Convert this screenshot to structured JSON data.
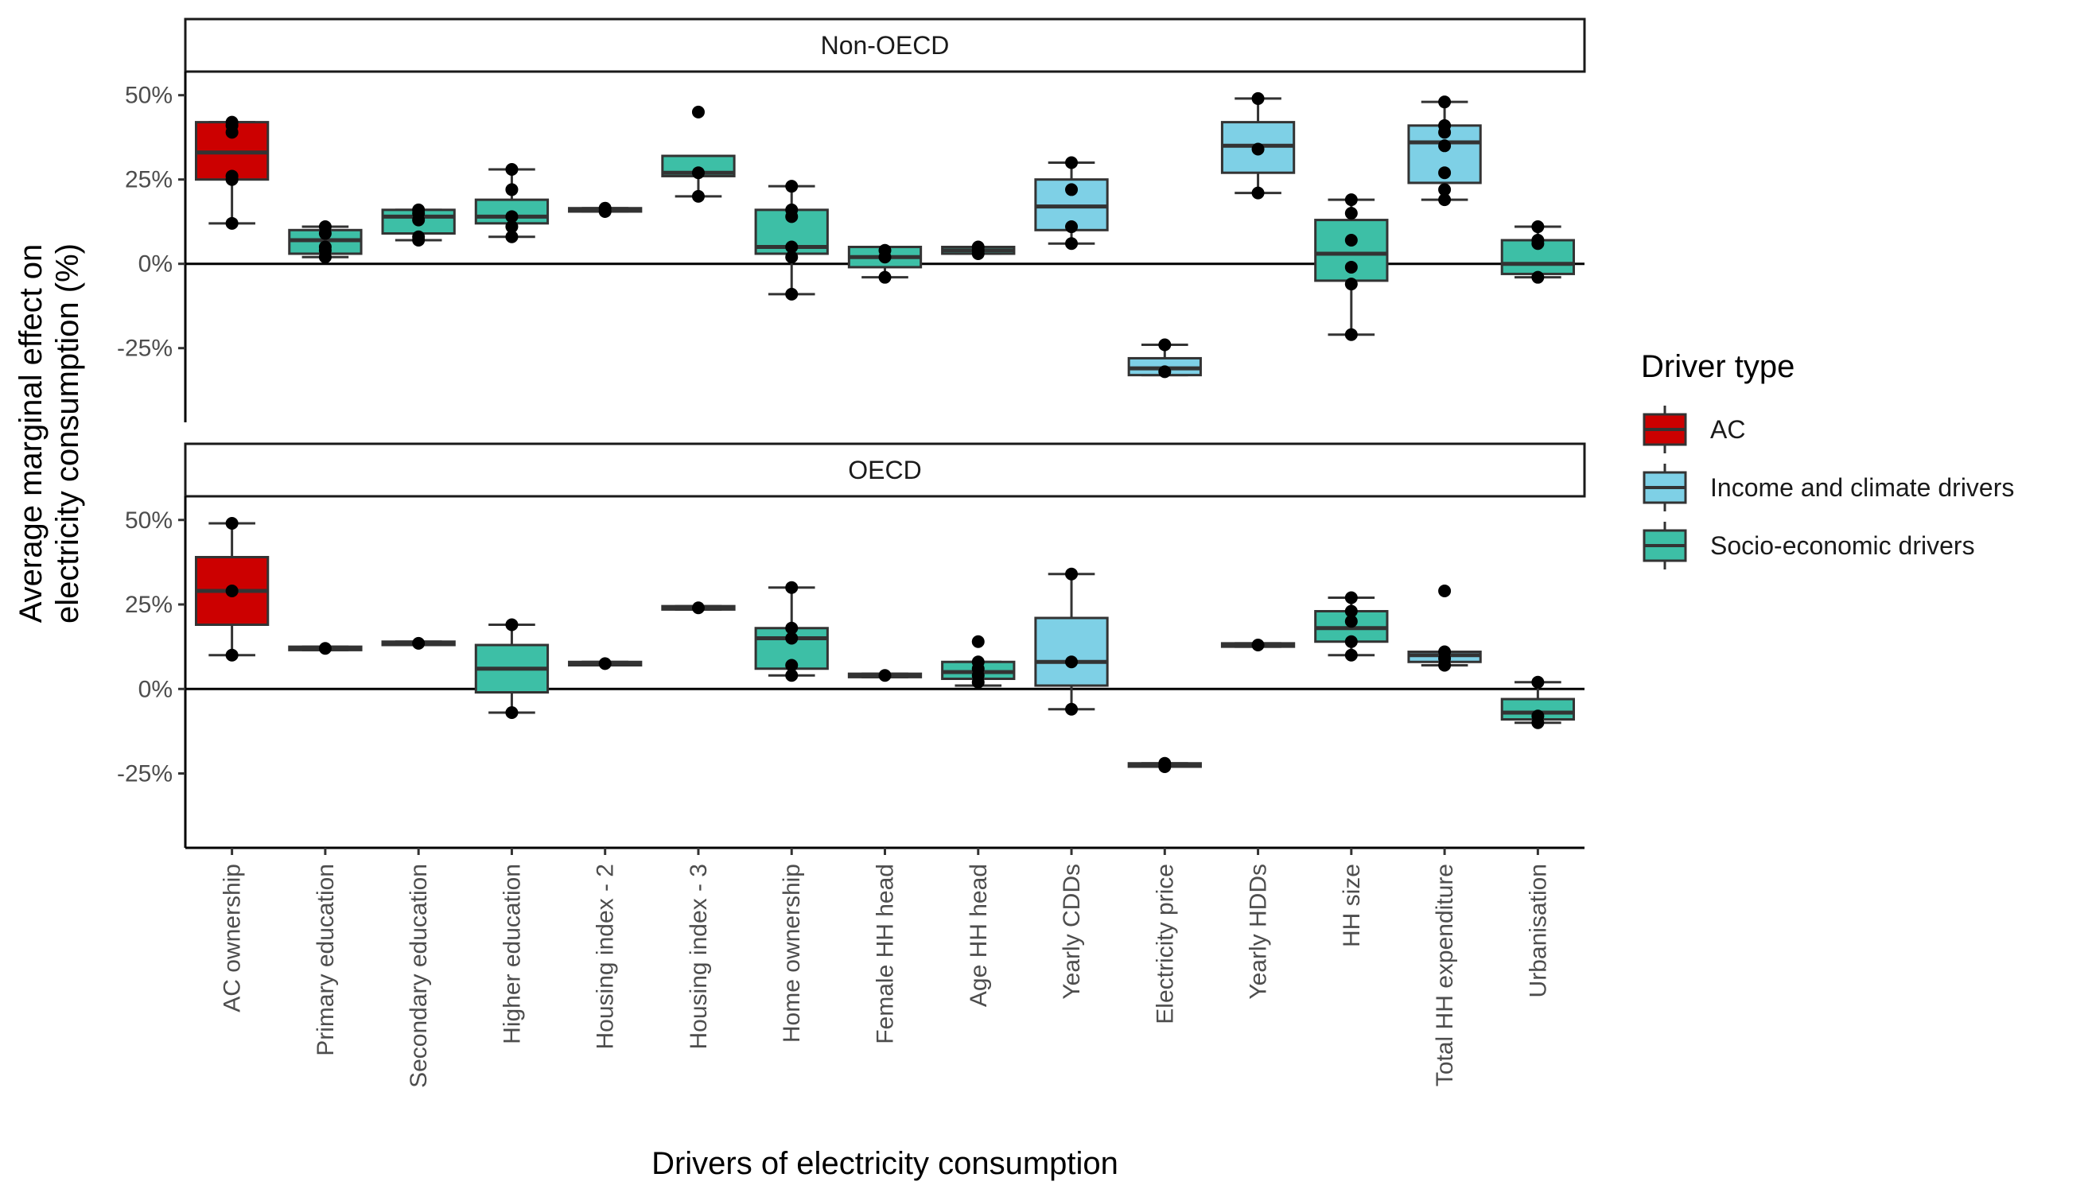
{
  "chart_data": {
    "type": "box",
    "xlabel": "Drivers of electricity consumption",
    "ylabel_lines": [
      "Average marginal effect on",
      "electricity consumption (%)"
    ],
    "y_ticks": [
      -25,
      0,
      25,
      50
    ],
    "y_tick_labels": [
      "-25%",
      "0%",
      "25%",
      "50%"
    ],
    "ylim": [
      -47,
      57
    ],
    "categories": [
      "AC ownership",
      "Primary education",
      "Secondary education",
      "Higher education",
      "Housing index - 2",
      "Housing index - 3",
      "Home ownership",
      "Female HH head",
      "Age HH head",
      "Yearly CDDs",
      "Electricity price",
      "Yearly HDDs",
      "HH size",
      "Total HH expenditure",
      "Urbanisation"
    ],
    "category_types": [
      "AC",
      "Socio-economic drivers",
      "Socio-economic drivers",
      "Socio-economic drivers",
      "Socio-economic drivers",
      "Socio-economic drivers",
      "Socio-economic drivers",
      "Socio-economic drivers",
      "Socio-economic drivers",
      "Income and climate drivers",
      "Income and climate drivers",
      "Income and climate drivers",
      "Socio-economic drivers",
      "Income and climate drivers",
      "Socio-economic drivers"
    ],
    "legend": {
      "title": "Driver type",
      "position": "right",
      "entries": [
        {
          "label": "AC",
          "color": "#CC0000"
        },
        {
          "label": "Income and climate drivers",
          "color": "#7ED0E6"
        },
        {
          "label": "Socio-economic drivers",
          "color": "#3DBFA6"
        }
      ]
    },
    "panels": [
      {
        "name": "Non-OECD",
        "boxes": [
          {
            "q1": 25,
            "median": 33,
            "q3": 42,
            "wlo": 12,
            "whi": 42,
            "points": [
              12,
              25,
              26,
              39,
              41,
              42
            ]
          },
          {
            "q1": 3,
            "median": 7,
            "q3": 10,
            "wlo": 2,
            "whi": 11,
            "points": [
              2,
              4,
              5,
              9,
              11
            ]
          },
          {
            "q1": 9,
            "median": 14,
            "q3": 16,
            "wlo": 7,
            "whi": 16,
            "points": [
              7,
              8,
              13,
              15,
              16
            ]
          },
          {
            "q1": 12,
            "median": 14,
            "q3": 19,
            "wlo": 8,
            "whi": 28,
            "points": [
              8,
              11,
              14,
              22,
              28
            ]
          },
          {
            "q1": 15.5,
            "median": 16,
            "q3": 16.5,
            "wlo": 15.5,
            "whi": 16.5,
            "points": [
              15.5,
              16.5
            ]
          },
          {
            "q1": 26,
            "median": 27,
            "q3": 32,
            "wlo": 20,
            "whi": 32,
            "points": [
              20,
              27,
              45
            ]
          },
          {
            "q1": 3,
            "median": 5,
            "q3": 16,
            "wlo": -9,
            "whi": 23,
            "points": [
              -9,
              2,
              5,
              14,
              16,
              23
            ]
          },
          {
            "q1": -1,
            "median": 2,
            "q3": 5,
            "wlo": -4,
            "whi": 5,
            "points": [
              -4,
              2,
              4
            ]
          },
          {
            "q1": 3,
            "median": 4,
            "q3": 5,
            "wlo": 3,
            "whi": 5,
            "points": [
              3,
              4,
              5
            ]
          },
          {
            "q1": 10,
            "median": 17,
            "q3": 25,
            "wlo": 6,
            "whi": 30,
            "points": [
              6,
              11,
              22,
              30
            ]
          },
          {
            "q1": -33,
            "median": -31,
            "q3": -28,
            "wlo": -33,
            "whi": -24,
            "points": [
              -32,
              -24
            ]
          },
          {
            "q1": 27,
            "median": 35,
            "q3": 42,
            "wlo": 21,
            "whi": 49,
            "points": [
              21,
              34,
              49
            ]
          },
          {
            "q1": -5,
            "median": 3,
            "q3": 13,
            "wlo": -21,
            "whi": 19,
            "points": [
              -21,
              -6,
              -1,
              7,
              15,
              19
            ]
          },
          {
            "q1": 24,
            "median": 36,
            "q3": 41,
            "wlo": 19,
            "whi": 48,
            "points": [
              19,
              22,
              27,
              35,
              39,
              41,
              48
            ]
          },
          {
            "q1": -3,
            "median": 0,
            "q3": 7,
            "wlo": -4,
            "whi": 11,
            "points": [
              -4,
              6,
              7,
              11
            ]
          }
        ]
      },
      {
        "name": "OECD",
        "boxes": [
          {
            "q1": 19,
            "median": 29,
            "q3": 39,
            "wlo": 10,
            "whi": 49,
            "points": [
              10,
              29,
              49
            ]
          },
          {
            "q1": 11.5,
            "median": 12,
            "q3": 12.5,
            "wlo": 11.5,
            "whi": 12.5,
            "points": [
              12
            ]
          },
          {
            "q1": 13,
            "median": 13.5,
            "q3": 14,
            "wlo": 13,
            "whi": 14,
            "points": [
              13.5
            ]
          },
          {
            "q1": -1,
            "median": 6,
            "q3": 13,
            "wlo": -7,
            "whi": 19,
            "points": [
              -7,
              19
            ]
          },
          {
            "q1": 7,
            "median": 7.5,
            "q3": 8,
            "wlo": 7,
            "whi": 8,
            "points": [
              7.5
            ]
          },
          {
            "q1": 23.5,
            "median": 24,
            "q3": 24.5,
            "wlo": 23.5,
            "whi": 24.5,
            "points": [
              24
            ]
          },
          {
            "q1": 6,
            "median": 15,
            "q3": 18,
            "wlo": 4,
            "whi": 30,
            "points": [
              4,
              7,
              15,
              18,
              30
            ]
          },
          {
            "q1": 3.5,
            "median": 4,
            "q3": 4.5,
            "wlo": 3.5,
            "whi": 4.5,
            "points": [
              4
            ]
          },
          {
            "q1": 3,
            "median": 5,
            "q3": 8,
            "wlo": 1,
            "whi": 8,
            "points": [
              2,
              4,
              6,
              8,
              14
            ]
          },
          {
            "q1": 1,
            "median": 8,
            "q3": 21,
            "wlo": -6,
            "whi": 34,
            "points": [
              -6,
              8,
              34
            ]
          },
          {
            "q1": -23,
            "median": -22.5,
            "q3": -22,
            "wlo": -23,
            "whi": -22,
            "points": [
              -23,
              -22
            ]
          },
          {
            "q1": 12.5,
            "median": 13,
            "q3": 13.5,
            "wlo": 12.5,
            "whi": 13.5,
            "points": [
              13
            ]
          },
          {
            "q1": 14,
            "median": 18,
            "q3": 23,
            "wlo": 10,
            "whi": 27,
            "points": [
              10,
              14,
              20,
              23,
              27
            ]
          },
          {
            "q1": 8,
            "median": 10,
            "q3": 11,
            "wlo": 7,
            "whi": 11,
            "points": [
              7,
              9,
              11,
              29
            ]
          },
          {
            "q1": -9,
            "median": -7,
            "q3": -3,
            "wlo": -10,
            "whi": 2,
            "points": [
              -10,
              -8,
              2
            ]
          }
        ]
      }
    ]
  }
}
